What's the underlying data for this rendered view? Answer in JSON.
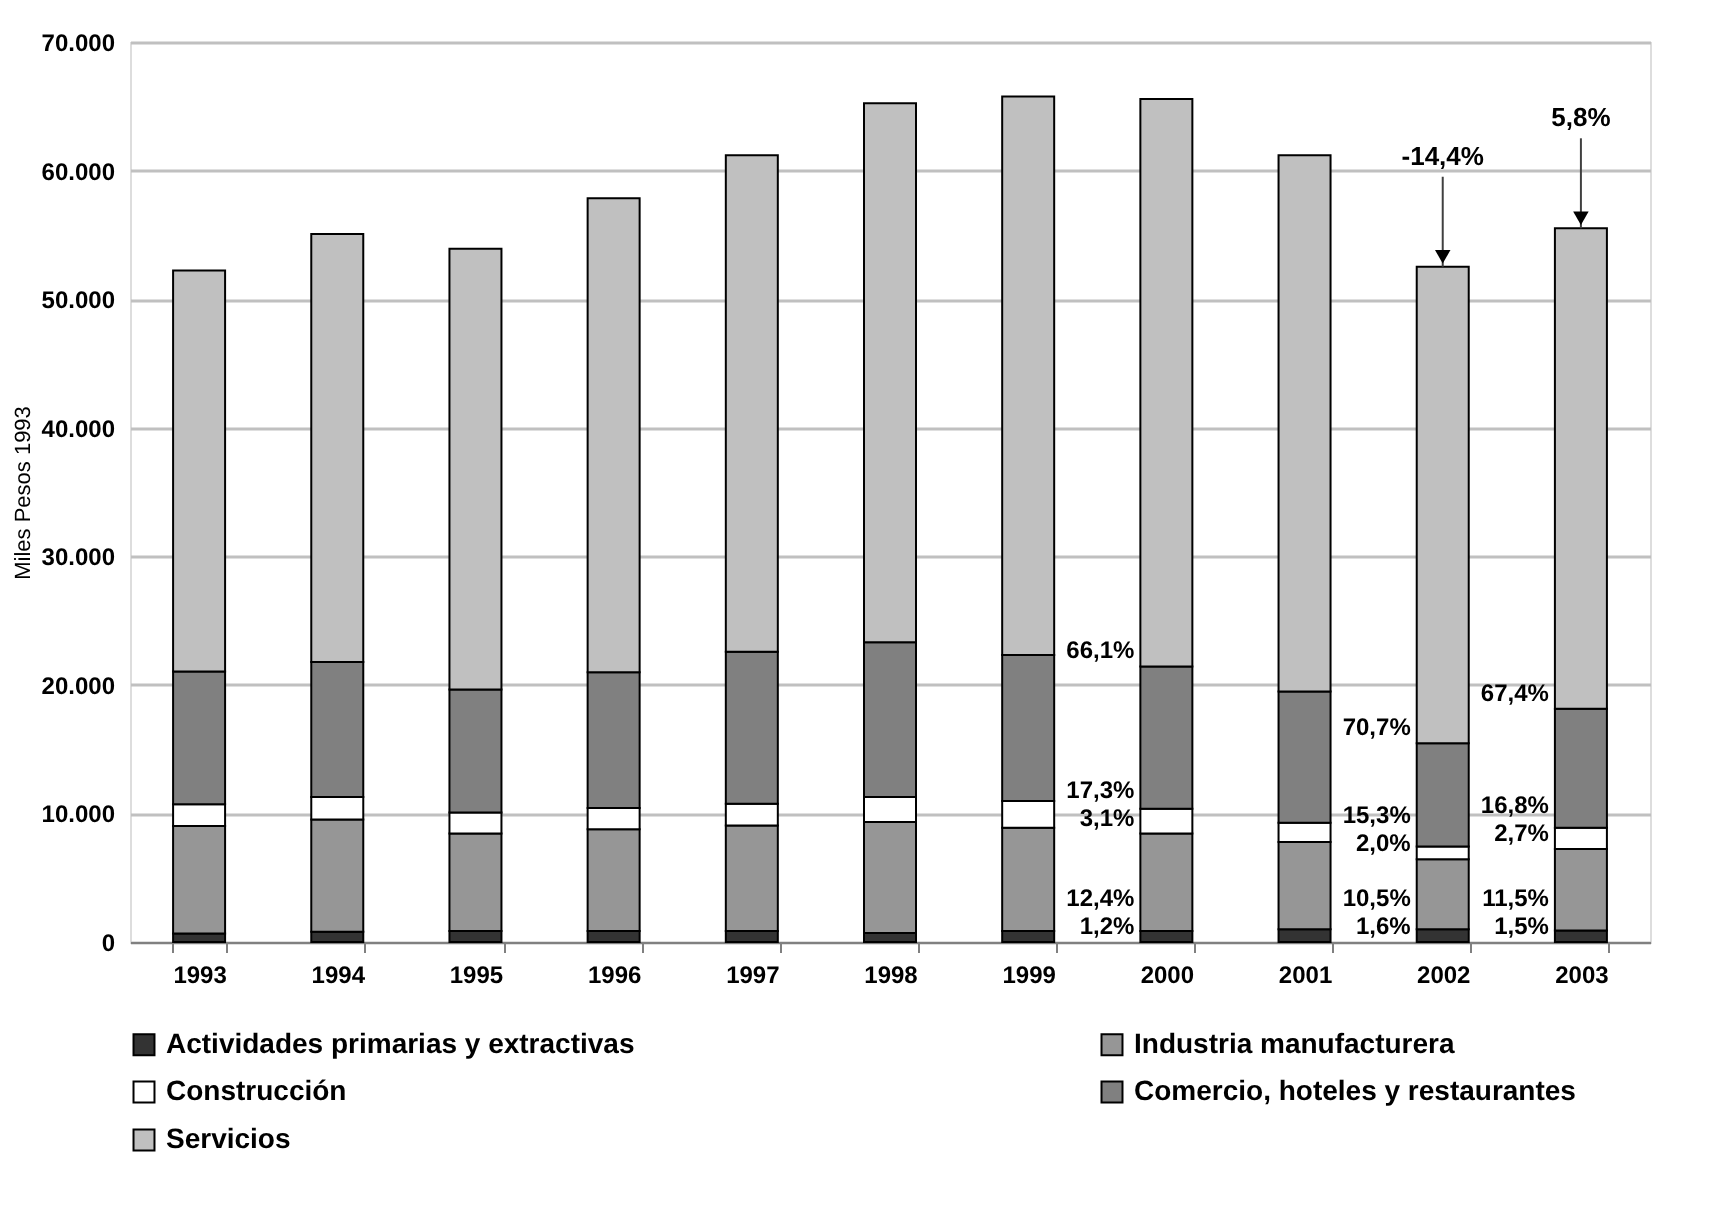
{
  "chart_data": {
    "type": "bar",
    "stacked": true,
    "ylabel": "Miles Pesos 1993",
    "categories": [
      "1993",
      "1994",
      "1995",
      "1996",
      "1997",
      "1998",
      "1999",
      "2000",
      "2001",
      "2002",
      "2003"
    ],
    "series": [
      {
        "name": "Actividades primarias y extractivas",
        "color": "#333333",
        "values": [
          660,
          800,
          850,
          850,
          850,
          700,
          850,
          850,
          1000,
          1000,
          900
        ]
      },
      {
        "name": "Industria manufacturera",
        "color": "#969696",
        "values": [
          8370,
          8720,
          7580,
          7920,
          8220,
          8630,
          8030,
          7580,
          6770,
          5430,
          6330
        ]
      },
      {
        "name": "Construcción",
        "color": "#ffffff",
        "values": [
          1690,
          1750,
          1640,
          1650,
          1690,
          1940,
          2090,
          1940,
          1500,
          1000,
          1650
        ]
      },
      {
        "name": "Comercio, hoteles y restaurantes",
        "color": "#808080",
        "values": [
          10310,
          10510,
          9570,
          10560,
          11810,
          12050,
          11360,
          11060,
          10220,
          8030,
          9270
        ]
      },
      {
        "name": "Servicios",
        "color": "#c0c0c0",
        "values": [
          31190,
          33290,
          34280,
          36870,
          38630,
          41910,
          43440,
          44140,
          41710,
          37060,
          37360
        ]
      }
    ],
    "ylim": [
      0,
      70000
    ],
    "yticks": [
      {
        "value": 0,
        "label": "0"
      },
      {
        "value": 10000,
        "label": "10.000"
      },
      {
        "value": 20000,
        "label": "20.000"
      },
      {
        "value": 30000,
        "label": "30.000"
      },
      {
        "value": 40000,
        "label": "40.000"
      },
      {
        "value": 50000,
        "label": "50.000"
      },
      {
        "value": 60000,
        "label": "60.000"
      },
      {
        "value": 70000,
        "label": "70.000"
      }
    ],
    "grid": "y",
    "legend": "bottom",
    "annotations": [
      {
        "text": "66,1%",
        "x": "2000",
        "y": 21430
      },
      {
        "text": "17,3%",
        "x": "2000",
        "y": 10370
      },
      {
        "text": "3,1%",
        "x": "2000",
        "y": 8430
      },
      {
        "text": "12,4%",
        "x": "2000",
        "y": 850
      },
      {
        "text": "1,2%",
        "x": "2000",
        "y": 0
      },
      {
        "text": "70,7%",
        "x": "2002",
        "y": 15460
      },
      {
        "text": "15,3%",
        "x": "2002",
        "y": 7430
      },
      {
        "text": "2,0%",
        "x": "2002",
        "y": 6430
      },
      {
        "text": "10,5%",
        "x": "2002",
        "y": 1000
      },
      {
        "text": "1,6%",
        "x": "2002",
        "y": 0
      },
      {
        "text": "67,4%",
        "x": "2003",
        "y": 18150
      },
      {
        "text": "16,8%",
        "x": "2003",
        "y": 8880
      },
      {
        "text": "2,7%",
        "x": "2003",
        "y": 7230
      },
      {
        "text": "11,5%",
        "x": "2003",
        "y": 900
      },
      {
        "text": "1,5%",
        "x": "2003",
        "y": 0
      },
      {
        "text": "-14,4%",
        "x": "2002",
        "y": 52520
      },
      {
        "text": "5,8%",
        "x": "2003",
        "y": 55510
      }
    ]
  }
}
